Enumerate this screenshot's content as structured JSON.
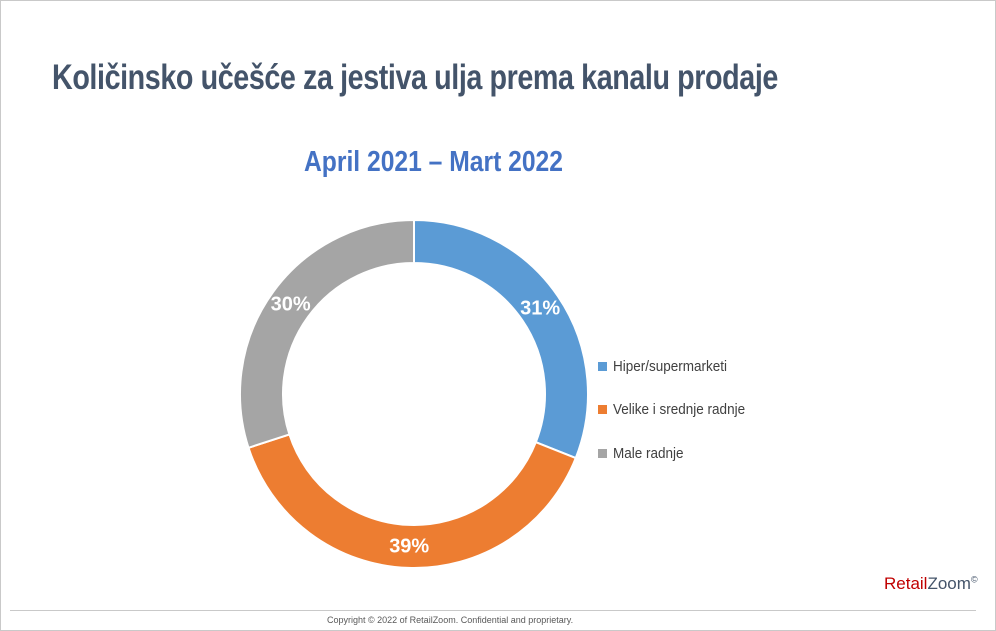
{
  "header": {
    "title": "Količinsko učešće za jestiva ulja prema kanalu prodaje"
  },
  "chart_data": {
    "type": "doughnut",
    "subtitle": "April 2021 – Mart 2022",
    "slices": [
      {
        "label": "Hiper/supermarketi",
        "value": 31,
        "data_label": "31%",
        "color": "#5b9bd5"
      },
      {
        "label": "Velike i srednje radnje",
        "value": 39,
        "data_label": "39%",
        "color": "#ed7d31"
      },
      {
        "label": "Male radnje",
        "value": 30,
        "data_label": "30%",
        "color": "#a5a5a5"
      }
    ],
    "legend_position": "right"
  },
  "footer": {
    "logo": {
      "retail": "Retail",
      "zoom": "Zoom",
      "mark": "©"
    },
    "copyright": "Copyright © 2022 of RetailZoom. Confidential and proprietary."
  }
}
